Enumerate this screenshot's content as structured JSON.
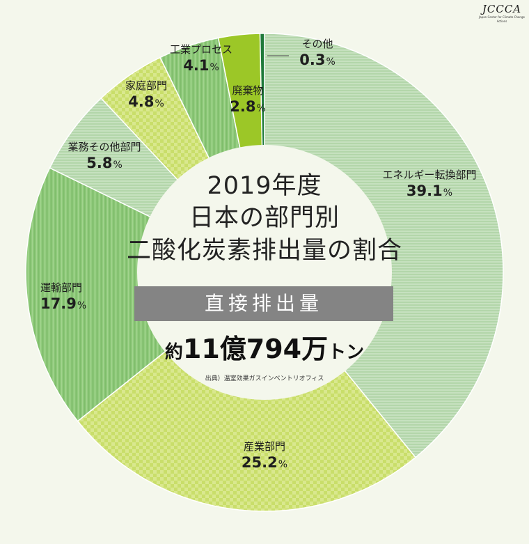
{
  "logo": {
    "text": "JCCCA",
    "subtitle": "Japan Center for Climate Change Actions"
  },
  "title": {
    "line1": "2019年度",
    "line2": "日本の部門別",
    "line3": "二酸化炭素排出量の割合"
  },
  "band_label": "直接排出量",
  "total": {
    "prefix": "約",
    "value": "11億794万",
    "suffix": "トン"
  },
  "source": "出典）温室効果ガスインベントリオフィス",
  "chart_data": {
    "type": "pie",
    "title": "2019年度 日本の部門別 二酸化炭素排出量の割合",
    "subtitle": "直接排出量",
    "unit": "%",
    "start_angle_deg": 0,
    "direction": "clockwise",
    "slices": [
      {
        "label": "エネルギー転換部門",
        "value": 39.1,
        "display": "39.1",
        "color": "#c3dfbb",
        "pattern": "lines"
      },
      {
        "label": "産業部門",
        "value": 25.2,
        "display": "25.2",
        "color": "#d6e68a",
        "pattern": "checks"
      },
      {
        "label": "運輸部門",
        "value": 17.9,
        "display": "17.9",
        "color": "#8ec97a",
        "pattern": "stripes"
      },
      {
        "label": "業務その他部門",
        "value": 5.8,
        "display": "5.8",
        "color": "#c3dfbb",
        "pattern": "lines"
      },
      {
        "label": "家庭部門",
        "value": 4.8,
        "display": "4.8",
        "color": "#d6e68a",
        "pattern": "checks"
      },
      {
        "label": "工業プロセス",
        "value": 4.1,
        "display": "4.1",
        "color": "#8ec97a",
        "pattern": "stripes"
      },
      {
        "label": "廃棄物",
        "value": 2.8,
        "display": "2.8",
        "color": "#9cc727",
        "pattern": "solid"
      },
      {
        "label": "その他",
        "value": 0.3,
        "display": "0.3",
        "color": "#1f7a3a",
        "pattern": "solid"
      }
    ]
  }
}
